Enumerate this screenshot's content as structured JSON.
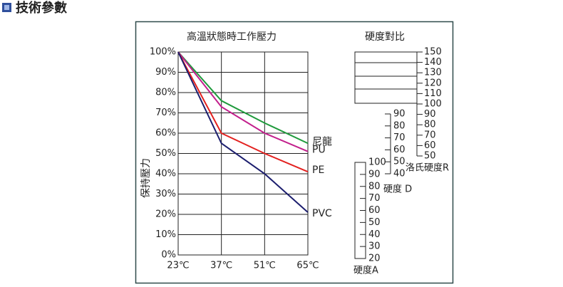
{
  "header": {
    "title": "技術參數"
  },
  "chart_data": [
    {
      "type": "line",
      "title": "高溫狀態時工作壓力",
      "y_label": "保持壓力",
      "x": [
        23,
        37,
        51,
        65
      ],
      "xlim": [
        23,
        65
      ],
      "xticks": [
        {
          "value": 23,
          "label": "23℃"
        },
        {
          "value": 37,
          "label": "37℃"
        },
        {
          "value": 51,
          "label": "51℃"
        },
        {
          "value": 65,
          "label": "65℃"
        }
      ],
      "ylim": [
        0,
        100
      ],
      "yticks": [
        {
          "value": 0,
          "label": "0%"
        },
        {
          "value": 10,
          "label": "10%"
        },
        {
          "value": 20,
          "label": "20%"
        },
        {
          "value": 30,
          "label": "30%"
        },
        {
          "value": 40,
          "label": "40%"
        },
        {
          "value": 50,
          "label": "50%"
        },
        {
          "value": 60,
          "label": "60%"
        },
        {
          "value": 70,
          "label": "70%"
        },
        {
          "value": 80,
          "label": "80%"
        },
        {
          "value": 90,
          "label": "90%"
        },
        {
          "value": 100,
          "label": "100%"
        }
      ],
      "grid": true,
      "series": [
        {
          "name": "尼龍",
          "color": "#1f9a3c",
          "values": [
            100,
            76,
            65,
            55
          ]
        },
        {
          "name": "PU",
          "color": "#c21f8c",
          "values": [
            100,
            73,
            60,
            51
          ]
        },
        {
          "name": "PE",
          "color": "#e3211f",
          "values": [
            100,
            60,
            50,
            41
          ]
        },
        {
          "name": "PVC",
          "color": "#1c1e6e",
          "values": [
            100,
            55,
            40,
            21
          ]
        }
      ]
    },
    {
      "type": "scale",
      "title": "硬度對比",
      "scales": [
        {
          "name": "洛氏硬度R",
          "ticks": [
            150,
            140,
            130,
            120,
            110,
            100,
            90,
            80,
            70,
            60,
            50
          ]
        },
        {
          "name": "硬度 D",
          "ticks": [
            90,
            80,
            70,
            60,
            50,
            40
          ]
        },
        {
          "name": "硬度A",
          "ticks": [
            100,
            90,
            80,
            70,
            60,
            50,
            40,
            30,
            20
          ]
        }
      ]
    }
  ]
}
